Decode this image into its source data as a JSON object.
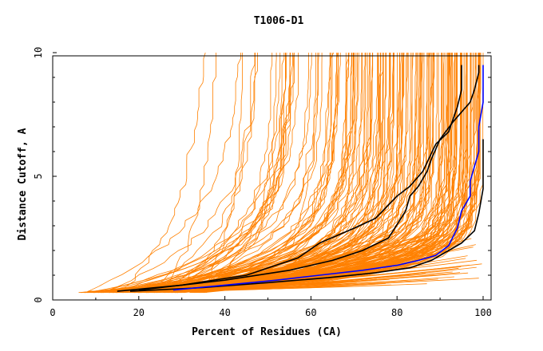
{
  "chart_data": {
    "type": "line",
    "title": "T1006-D1",
    "xlabel": "Percent of Residues (CA)",
    "ylabel": "Distance Cutoff, A",
    "xlim": [
      0,
      100
    ],
    "ylim": [
      0,
      10
    ],
    "x_ticks": [
      "0",
      "20",
      "40",
      "60",
      "80",
      "100"
    ],
    "y_ticks": [
      "0",
      "5",
      "10"
    ],
    "grid": false,
    "colors": {
      "bulk": "#ff8000",
      "highlight_black": "#000000",
      "highlight_blue": "#0000ff"
    },
    "highlight_series": [
      {
        "name": "black-curve-1",
        "color": "#000000",
        "points": [
          [
            15,
            0.35
          ],
          [
            30,
            0.6
          ],
          [
            45,
            1.0
          ],
          [
            57,
            1.7
          ],
          [
            62,
            2.3
          ],
          [
            70,
            2.9
          ],
          [
            75,
            3.3
          ],
          [
            80,
            4.2
          ],
          [
            83,
            4.6
          ],
          [
            86,
            5.2
          ],
          [
            89,
            6.3
          ],
          [
            92,
            6.8
          ],
          [
            94,
            7.8
          ],
          [
            95,
            8.5
          ],
          [
            95,
            9.5
          ]
        ]
      },
      {
        "name": "black-curve-2",
        "color": "#000000",
        "points": [
          [
            20,
            0.4
          ],
          [
            40,
            0.8
          ],
          [
            55,
            1.2
          ],
          [
            65,
            1.6
          ],
          [
            72,
            2.0
          ],
          [
            78,
            2.5
          ],
          [
            82,
            3.6
          ],
          [
            83,
            4.2
          ],
          [
            85,
            4.6
          ],
          [
            87,
            5.2
          ],
          [
            88,
            5.7
          ],
          [
            90,
            6.5
          ],
          [
            93,
            7.2
          ],
          [
            97,
            8.0
          ],
          [
            98,
            8.5
          ],
          [
            99,
            9.2
          ],
          [
            99,
            9.5
          ]
        ]
      },
      {
        "name": "black-curve-3",
        "color": "#000000",
        "points": [
          [
            18,
            0.35
          ],
          [
            35,
            0.5
          ],
          [
            50,
            0.7
          ],
          [
            64,
            0.9
          ],
          [
            75,
            1.1
          ],
          [
            83,
            1.3
          ],
          [
            88,
            1.6
          ],
          [
            92,
            2.0
          ],
          [
            95,
            2.3
          ],
          [
            98,
            2.8
          ],
          [
            99,
            3.5
          ],
          [
            100,
            4.5
          ],
          [
            100,
            6.5
          ]
        ]
      },
      {
        "name": "blue-curve",
        "color": "#0000ff",
        "points": [
          [
            28,
            0.4
          ],
          [
            40,
            0.6
          ],
          [
            52,
            0.8
          ],
          [
            62,
            1.0
          ],
          [
            72,
            1.2
          ],
          [
            80,
            1.4
          ],
          [
            85,
            1.6
          ],
          [
            89,
            1.8
          ],
          [
            92,
            2.2
          ],
          [
            94,
            2.9
          ],
          [
            95,
            3.6
          ],
          [
            97,
            4.2
          ],
          [
            97,
            4.8
          ],
          [
            99,
            6.0
          ],
          [
            99,
            7.0
          ],
          [
            100,
            8.0
          ],
          [
            100,
            9.5
          ]
        ]
      }
    ]
  }
}
